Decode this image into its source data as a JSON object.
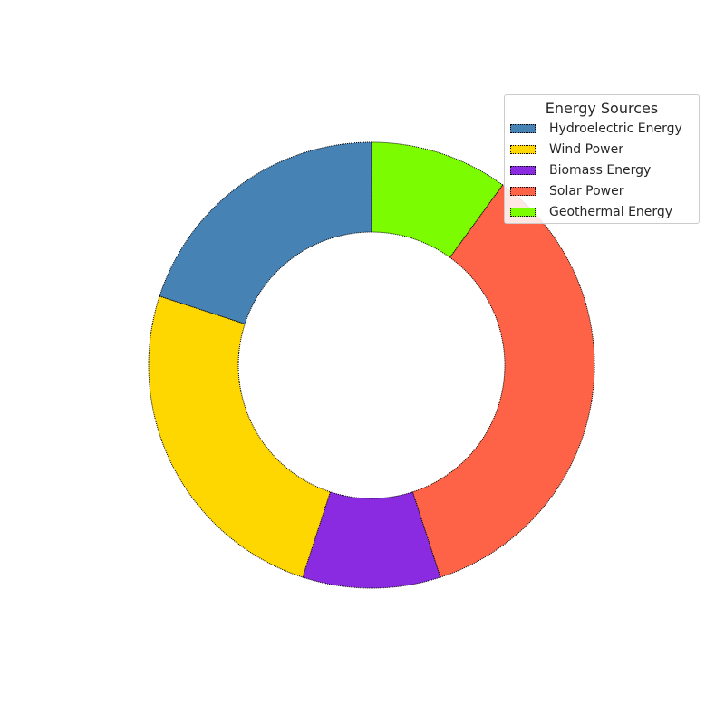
{
  "chart_data": {
    "type": "pie",
    "donut": true,
    "legend_title": "Energy Sources",
    "legend_placement": "top-right",
    "start_angle_deg": 90,
    "direction": "counterclockwise",
    "series": [
      {
        "name": "Hydroelectric Energy",
        "value": 20,
        "color": "#4682B4"
      },
      {
        "name": "Wind Power",
        "value": 25,
        "color": "#FFD700"
      },
      {
        "name": "Biomass Energy",
        "value": 10,
        "color": "#8A2BE2"
      },
      {
        "name": "Solar Power",
        "value": 35,
        "color": "#FF6347"
      },
      {
        "name": "Geothermal Energy",
        "value": 10,
        "color": "#7CFC00"
      }
    ]
  }
}
